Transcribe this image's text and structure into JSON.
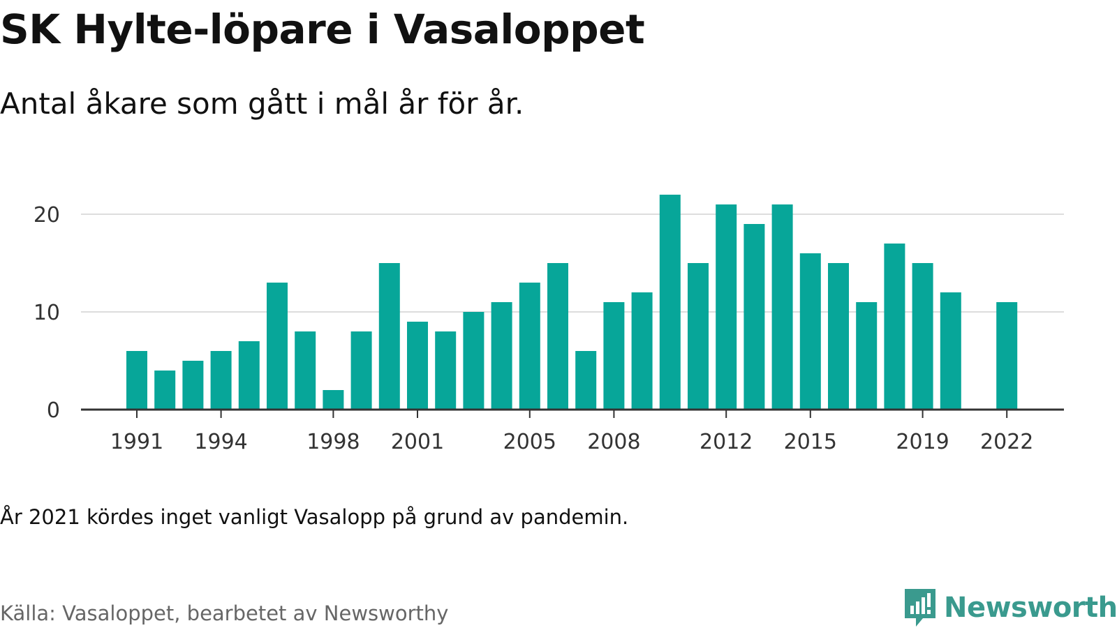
{
  "title": "SK Hylte-löpare i Vasaloppet",
  "subtitle": "Antal åkare som gått i mål år för år.",
  "note": "År 2021 kördes inget vanligt Vasalopp på grund av pandemin.",
  "source": "Källa: Vasaloppet, bearbetet av Newsworthy",
  "logo_text": "Newsworthy",
  "colors": {
    "bar": "#07a699",
    "grid": "#dddddd",
    "axis": "#333333",
    "logo": "#3a9a8e"
  },
  "chart_data": {
    "type": "bar",
    "title": "SK Hylte-löpare i Vasaloppet",
    "subtitle": "Antal åkare som gått i mål år för år.",
    "xlabel": "",
    "ylabel": "",
    "categories": [
      1991,
      1992,
      1993,
      1994,
      1995,
      1996,
      1997,
      1998,
      1999,
      2000,
      2001,
      2002,
      2003,
      2004,
      2005,
      2006,
      2007,
      2008,
      2009,
      2010,
      2011,
      2012,
      2013,
      2014,
      2015,
      2016,
      2017,
      2018,
      2019,
      2020,
      2021,
      2022
    ],
    "values": [
      6,
      4,
      5,
      6,
      7,
      13,
      8,
      2,
      8,
      15,
      9,
      8,
      10,
      11,
      13,
      15,
      6,
      11,
      12,
      22,
      15,
      21,
      19,
      21,
      16,
      15,
      11,
      17,
      15,
      12,
      null,
      11
    ],
    "x_tick_labels": [
      "1991",
      "1994",
      "1998",
      "2001",
      "2005",
      "2008",
      "2012",
      "2015",
      "2019",
      "2022"
    ],
    "y_ticks": [
      0,
      10,
      20
    ],
    "ylim": [
      0,
      22
    ],
    "grid": true,
    "legend": "none"
  }
}
